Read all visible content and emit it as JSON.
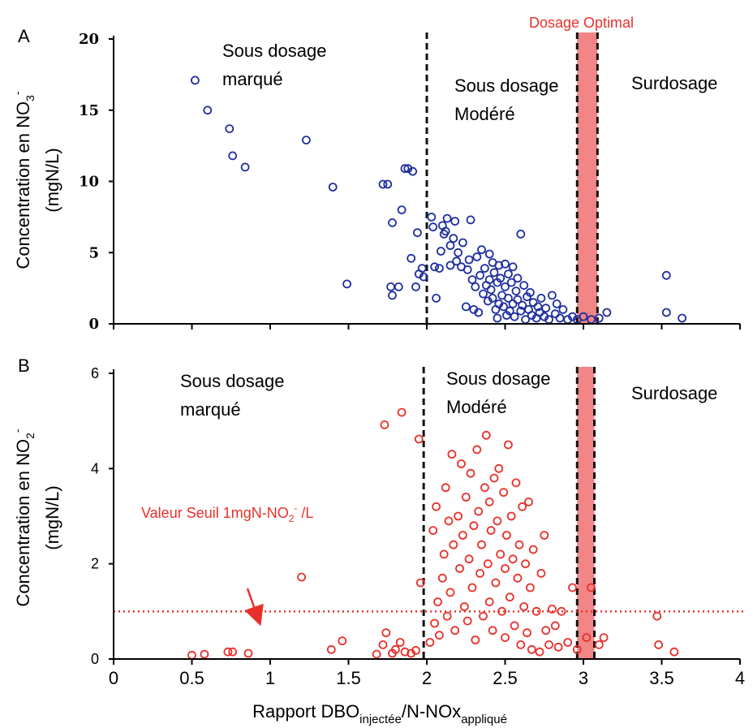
{
  "chart_data": [
    {
      "panel": "A",
      "type": "scatter",
      "ylabel_main": "Concentration en NO",
      "ylabel_sub": "3",
      "ylabel_sup": "-",
      "ylabel_unit": "(mgN/L)",
      "ylim": [
        0,
        20
      ],
      "yticks": [
        "0",
        "5",
        "10",
        "15",
        "20"
      ],
      "xlim": [
        0,
        4
      ],
      "colors": {
        "points": "#1f2f9e",
        "optimal_band": "#f07070",
        "divider": "#111111"
      },
      "zones": {
        "zone1": [
          "Sous dosage",
          "marqué"
        ],
        "zone2": [
          "Sous dosage",
          "Modéré"
        ],
        "zone3": "Surdosage",
        "optimal": "Dosage Optimal"
      },
      "dividers_x": [
        2.0,
        2.96,
        3.09
      ],
      "optimal_band": [
        2.96,
        3.09
      ],
      "series": [
        {
          "points": [
            [
              0.52,
              17.1
            ],
            [
              0.6,
              15.0
            ],
            [
              0.74,
              13.7
            ],
            [
              0.76,
              11.8
            ],
            [
              0.84,
              11.0
            ],
            [
              1.23,
              12.9
            ],
            [
              1.4,
              9.6
            ],
            [
              1.49,
              2.8
            ],
            [
              1.72,
              9.8
            ],
            [
              1.75,
              9.8
            ],
            [
              1.77,
              2.6
            ],
            [
              1.78,
              2.0
            ],
            [
              1.78,
              7.1
            ],
            [
              1.82,
              2.6
            ],
            [
              1.84,
              8.0
            ],
            [
              1.86,
              10.9
            ],
            [
              1.88,
              10.9
            ],
            [
              1.9,
              4.6
            ],
            [
              1.91,
              10.7
            ],
            [
              1.93,
              2.6
            ],
            [
              1.94,
              6.4
            ],
            [
              1.95,
              3.5
            ],
            [
              1.97,
              3.9
            ],
            [
              1.98,
              3.3
            ],
            [
              2.03,
              7.5
            ],
            [
              2.04,
              6.8
            ],
            [
              2.05,
              4.0
            ],
            [
              2.06,
              1.8
            ],
            [
              2.08,
              3.9
            ],
            [
              2.09,
              5.1
            ],
            [
              2.1,
              6.9
            ],
            [
              2.11,
              6.3
            ],
            [
              2.12,
              6.5
            ],
            [
              2.13,
              7.4
            ],
            [
              2.15,
              4.1
            ],
            [
              2.15,
              5.5
            ],
            [
              2.17,
              6.0
            ],
            [
              2.18,
              7.2
            ],
            [
              2.19,
              4.4
            ],
            [
              2.2,
              5.0
            ],
            [
              2.22,
              4.0
            ],
            [
              2.23,
              5.7
            ],
            [
              2.25,
              1.2
            ],
            [
              2.26,
              3.8
            ],
            [
              2.27,
              4.5
            ],
            [
              2.28,
              7.3
            ],
            [
              2.29,
              3.1
            ],
            [
              2.3,
              1.0
            ],
            [
              2.31,
              2.6
            ],
            [
              2.32,
              4.7
            ],
            [
              2.33,
              0.8
            ],
            [
              2.34,
              3.4
            ],
            [
              2.35,
              5.2
            ],
            [
              2.36,
              2.1
            ],
            [
              2.37,
              3.9
            ],
            [
              2.38,
              2.7
            ],
            [
              2.39,
              1.6
            ],
            [
              2.4,
              4.9
            ],
            [
              2.4,
              3.1
            ],
            [
              2.41,
              2.4
            ],
            [
              2.42,
              1.8
            ],
            [
              2.42,
              4.3
            ],
            [
              2.43,
              3.6
            ],
            [
              2.44,
              1.0
            ],
            [
              2.45,
              2.9
            ],
            [
              2.45,
              0.4
            ],
            [
              2.46,
              4.1
            ],
            [
              2.46,
              1.4
            ],
            [
              2.47,
              3.2
            ],
            [
              2.48,
              2.0
            ],
            [
              2.49,
              1.2
            ],
            [
              2.5,
              4.2
            ],
            [
              2.5,
              2.6
            ],
            [
              2.51,
              0.6
            ],
            [
              2.52,
              3.5
            ],
            [
              2.52,
              1.8
            ],
            [
              2.53,
              0.9
            ],
            [
              2.54,
              2.9
            ],
            [
              2.55,
              1.4
            ],
            [
              2.55,
              4.0
            ],
            [
              2.56,
              0.5
            ],
            [
              2.57,
              2.3
            ],
            [
              2.58,
              1.7
            ],
            [
              2.58,
              3.2
            ],
            [
              2.6,
              6.3
            ],
            [
              2.6,
              0.9
            ],
            [
              2.61,
              1.3
            ],
            [
              2.62,
              2.7
            ],
            [
              2.63,
              0.3
            ],
            [
              2.64,
              1.9
            ],
            [
              2.65,
              1.0
            ],
            [
              2.66,
              2.2
            ],
            [
              2.67,
              0.6
            ],
            [
              2.68,
              1.5
            ],
            [
              2.7,
              0.4
            ],
            [
              2.71,
              1.2
            ],
            [
              2.72,
              0.8
            ],
            [
              2.73,
              1.8
            ],
            [
              2.75,
              0.5
            ],
            [
              2.76,
              1.1
            ],
            [
              2.78,
              0.3
            ],
            [
              2.8,
              2.0
            ],
            [
              2.82,
              0.7
            ],
            [
              2.83,
              1.4
            ],
            [
              2.85,
              0.4
            ],
            [
              2.87,
              1.0
            ],
            [
              2.9,
              0.3
            ],
            [
              2.93,
              0.5
            ],
            [
              2.96,
              0.3
            ],
            [
              3.0,
              0.5
            ],
            [
              3.05,
              0.3
            ],
            [
              3.1,
              0.4
            ],
            [
              3.15,
              0.8
            ],
            [
              3.53,
              3.4
            ],
            [
              3.53,
              0.8
            ],
            [
              3.63,
              0.4
            ]
          ]
        }
      ]
    },
    {
      "panel": "B",
      "type": "scatter",
      "ylabel_main": "Concentration en NO",
      "ylabel_sub": "2",
      "ylabel_sup": "-",
      "ylabel_unit": "(mgN/L)",
      "ylim": [
        0,
        6
      ],
      "yticks": [
        "0",
        "2",
        "4",
        "6"
      ],
      "xlim": [
        0,
        4
      ],
      "xticks": [
        "0",
        "0.5",
        "1",
        "1.5",
        "2",
        "2.5",
        "3",
        "3.5",
        "4"
      ],
      "xlabel_main": "Rapport DBO",
      "xlabel_sub1": "injectée",
      "xlabel_mid": "/N-NOx",
      "xlabel_sub2": "appliqué",
      "colors": {
        "points": "#e8302a",
        "optimal_band": "#f07070",
        "divider": "#111111",
        "threshold": "#e8302a"
      },
      "zones": {
        "zone1": [
          "Sous dosage",
          "marqué"
        ],
        "zone2": [
          "Sous dosage",
          "Modéré"
        ],
        "zone3": "Surdosage"
      },
      "threshold": {
        "y": 1.0,
        "label_main": "Valeur Seuil 1mgN-NO",
        "label_sub": "2",
        "label_sup": "-",
        "label_end": " /L"
      },
      "dividers_x": [
        1.98,
        2.96,
        3.07
      ],
      "optimal_band": [
        2.96,
        3.07
      ],
      "series": [
        {
          "points": [
            [
              0.5,
              0.08
            ],
            [
              0.58,
              0.1
            ],
            [
              0.73,
              0.15
            ],
            [
              0.76,
              0.15
            ],
            [
              0.86,
              0.12
            ],
            [
              1.2,
              1.72
            ],
            [
              1.39,
              0.2
            ],
            [
              1.46,
              0.38
            ],
            [
              1.68,
              0.1
            ],
            [
              1.72,
              0.3
            ],
            [
              1.73,
              4.92
            ],
            [
              1.74,
              0.55
            ],
            [
              1.78,
              0.12
            ],
            [
              1.8,
              0.2
            ],
            [
              1.83,
              0.35
            ],
            [
              1.84,
              5.18
            ],
            [
              1.86,
              0.15
            ],
            [
              1.9,
              0.12
            ],
            [
              1.93,
              0.18
            ],
            [
              1.95,
              4.62
            ],
            [
              1.96,
              1.6
            ],
            [
              2.02,
              0.35
            ],
            [
              2.04,
              2.7
            ],
            [
              2.05,
              0.75
            ],
            [
              2.06,
              3.2
            ],
            [
              2.07,
              1.2
            ],
            [
              2.08,
              0.5
            ],
            [
              2.1,
              1.7
            ],
            [
              2.11,
              2.2
            ],
            [
              2.12,
              3.6
            ],
            [
              2.13,
              0.9
            ],
            [
              2.14,
              2.9
            ],
            [
              2.15,
              1.4
            ],
            [
              2.16,
              4.3
            ],
            [
              2.17,
              2.4
            ],
            [
              2.18,
              0.6
            ],
            [
              2.2,
              3.0
            ],
            [
              2.21,
              1.9
            ],
            [
              2.22,
              4.1
            ],
            [
              2.23,
              2.6
            ],
            [
              2.24,
              1.1
            ],
            [
              2.25,
              3.4
            ],
            [
              2.26,
              0.8
            ],
            [
              2.27,
              2.1
            ],
            [
              2.28,
              3.9
            ],
            [
              2.29,
              1.5
            ],
            [
              2.3,
              2.8
            ],
            [
              2.31,
              0.4
            ],
            [
              2.32,
              4.4
            ],
            [
              2.33,
              3.1
            ],
            [
              2.34,
              1.8
            ],
            [
              2.35,
              2.4
            ],
            [
              2.36,
              0.9
            ],
            [
              2.37,
              3.6
            ],
            [
              2.38,
              4.7
            ],
            [
              2.39,
              2.0
            ],
            [
              2.4,
              1.2
            ],
            [
              2.4,
              3.3
            ],
            [
              2.41,
              2.7
            ],
            [
              2.42,
              0.6
            ],
            [
              2.43,
              3.8
            ],
            [
              2.44,
              1.6
            ],
            [
              2.45,
              2.9
            ],
            [
              2.46,
              4.0
            ],
            [
              2.47,
              2.2
            ],
            [
              2.48,
              1.0
            ],
            [
              2.49,
              3.5
            ],
            [
              2.5,
              1.9
            ],
            [
              2.5,
              0.45
            ],
            [
              2.51,
              2.6
            ],
            [
              2.52,
              4.5
            ],
            [
              2.53,
              1.3
            ],
            [
              2.54,
              3.0
            ],
            [
              2.55,
              2.1
            ],
            [
              2.56,
              0.7
            ],
            [
              2.57,
              3.7
            ],
            [
              2.58,
              1.7
            ],
            [
              2.59,
              2.4
            ],
            [
              2.6,
              0.3
            ],
            [
              2.61,
              3.2
            ],
            [
              2.62,
              1.1
            ],
            [
              2.63,
              2.0
            ],
            [
              2.64,
              0.55
            ],
            [
              2.65,
              3.3
            ],
            [
              2.66,
              1.5
            ],
            [
              2.67,
              0.2
            ],
            [
              2.68,
              2.3
            ],
            [
              2.7,
              1.0
            ],
            [
              2.72,
              0.15
            ],
            [
              2.73,
              1.8
            ],
            [
              2.75,
              2.6
            ],
            [
              2.76,
              0.6
            ],
            [
              2.78,
              0.3
            ],
            [
              2.8,
              1.05
            ],
            [
              2.82,
              0.7
            ],
            [
              2.84,
              0.25
            ],
            [
              2.86,
              1.0
            ],
            [
              2.9,
              0.35
            ],
            [
              2.93,
              1.5
            ],
            [
              2.96,
              0.2
            ],
            [
              3.02,
              0.45
            ],
            [
              3.05,
              1.5
            ],
            [
              3.1,
              0.3
            ],
            [
              3.13,
              0.45
            ],
            [
              3.47,
              0.9
            ],
            [
              3.48,
              0.3
            ],
            [
              3.58,
              0.15
            ]
          ]
        }
      ]
    }
  ]
}
